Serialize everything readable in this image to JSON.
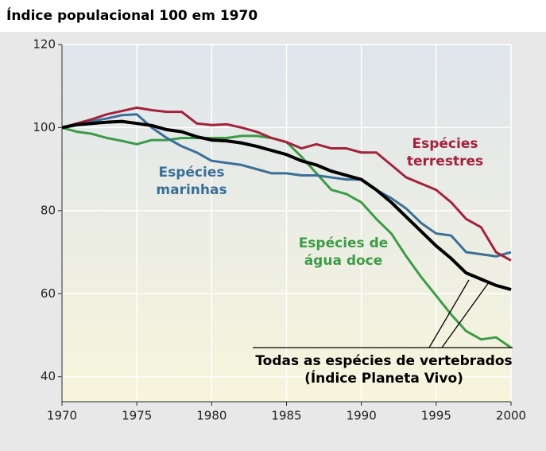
{
  "chart_data": {
    "type": "line",
    "title": "Índice populacional 100 em 1970",
    "x": [
      1970,
      1971,
      1972,
      1973,
      1974,
      1975,
      1976,
      1977,
      1978,
      1979,
      1980,
      1981,
      1982,
      1983,
      1984,
      1985,
      1986,
      1987,
      1988,
      1989,
      1990,
      1991,
      1992,
      1993,
      1994,
      1995,
      1996,
      1997,
      1998,
      1999,
      2000
    ],
    "series": [
      {
        "name": "Espécies terrestres",
        "color": "#a3223c",
        "values": [
          100,
          101,
          102,
          103.2,
          104,
          104.8,
          104.2,
          103.8,
          103.8,
          101,
          100.6,
          100.8,
          100,
          99,
          97.5,
          96.5,
          95,
          96,
          95,
          95,
          94,
          94,
          91,
          88,
          86.5,
          85,
          82,
          78,
          76,
          70,
          68
        ]
      },
      {
        "name": "Espécies marinhas",
        "color": "#3a6f98",
        "values": [
          100,
          100.8,
          101.5,
          102.2,
          103,
          103.2,
          100,
          97.5,
          95.5,
          94,
          92,
          91.5,
          91,
          90,
          89,
          89,
          88.5,
          88.5,
          88,
          87.5,
          87.5,
          85,
          83,
          80.5,
          77,
          74.5,
          74,
          70,
          69.5,
          69,
          70
        ]
      },
      {
        "name": "Espécies de água doce",
        "color": "#3d9b47",
        "values": [
          100,
          99,
          98.5,
          97.5,
          96.8,
          96,
          97,
          97,
          97.5,
          97.5,
          97.5,
          97.5,
          98,
          98,
          97.5,
          96.5,
          93,
          89,
          85,
          84,
          82,
          78,
          74.5,
          69,
          64,
          59.5,
          55,
          51,
          49,
          49.5,
          47
        ]
      },
      {
        "name": "Todas as espécies de vertebrados (Índice Planeta Vivo)",
        "color": "#000000",
        "values": [
          100,
          100.7,
          101,
          101.3,
          101.5,
          101,
          100.5,
          99.5,
          99,
          97.8,
          97,
          96.8,
          96.3,
          95.5,
          94.5,
          93.5,
          92,
          91,
          89.5,
          88.5,
          87.5,
          85,
          82,
          78.5,
          75,
          71.5,
          68.5,
          65,
          63.5,
          62,
          61
        ]
      }
    ],
    "annotations": [
      {
        "lines": [
          "Espécies",
          "terrestres"
        ],
        "color": "#a3223c"
      },
      {
        "lines": [
          "Espécies",
          "marinhas"
        ],
        "color": "#3a6f98"
      },
      {
        "lines": [
          "Espécies de",
          "água doce"
        ],
        "color": "#3d9b47"
      },
      {
        "lines": [
          "Todas as espécies de vertebrados",
          "(Índice Planeta Vivo)"
        ],
        "color": "#000000"
      }
    ],
    "xlim": [
      1970,
      2000
    ],
    "xticks": [
      1970,
      1975,
      1980,
      1985,
      1990,
      1995,
      2000
    ],
    "ylim": [
      34,
      120
    ],
    "yticks": [
      40,
      60,
      80,
      100,
      120
    ],
    "grid": true
  }
}
